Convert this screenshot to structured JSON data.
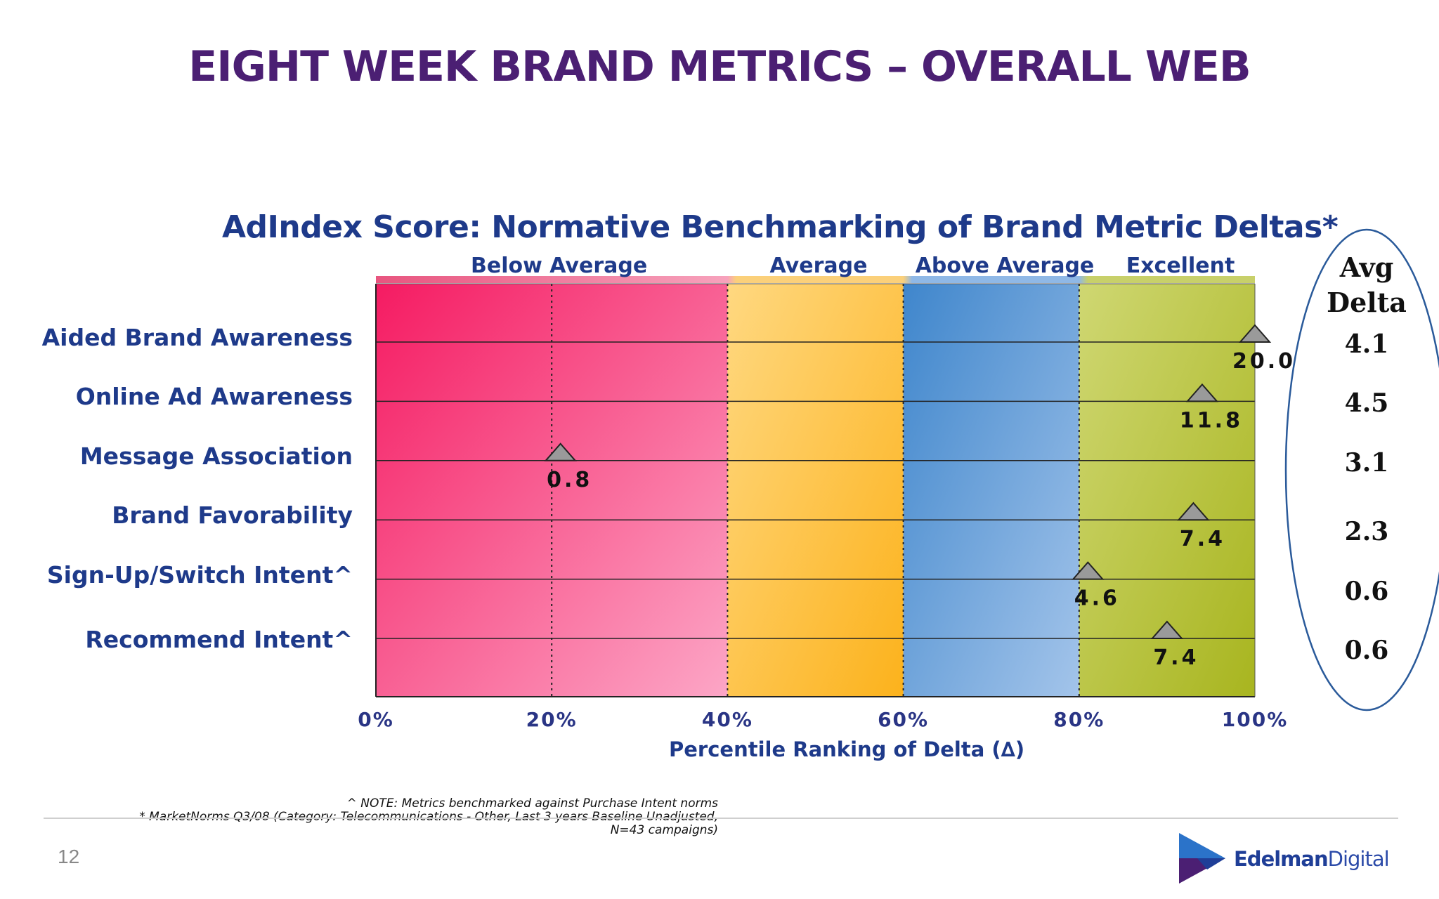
{
  "page_title": "EIGHT WEEK BRAND METRICS – OVERALL WEB",
  "chart_data": {
    "type": "scatter",
    "title": "AdIndex Score: Normative Benchmarking of Brand Metric Deltas*",
    "xlabel": "Percentile Ranking of Delta (∆)",
    "ylabel": "",
    "xlim": [
      0,
      100
    ],
    "x_tick_labels": [
      "0%",
      "20%",
      "40%",
      "60%",
      "80%",
      "100%"
    ],
    "x_ticks": [
      0,
      20,
      40,
      60,
      80,
      100
    ],
    "bands": [
      {
        "label": "Below Average",
        "from": 0,
        "to": 40,
        "color": "#f2447a"
      },
      {
        "label": "Average",
        "from": 40,
        "to": 60,
        "color": "#fdb93d"
      },
      {
        "label": "Above Average",
        "from": 60,
        "to": 80,
        "color": "#5b9bd5"
      },
      {
        "label": "Excellent",
        "from": 80,
        "to": 100,
        "color": "#b8c43a"
      }
    ],
    "categories": [
      "Aided Brand Awareness",
      "Online Ad Awareness",
      "Message Association",
      "Brand Favorability",
      "Sign-Up/Switch Intent^",
      "Recommend Intent^"
    ],
    "percentile": [
      100,
      94,
      21,
      93,
      81,
      90
    ],
    "delta_labels": [
      "20.0",
      "11.8",
      "0.8",
      "7.4",
      "4.6",
      "7.4"
    ],
    "avg_delta_header": "Avg Delta",
    "avg_delta": [
      "4.1",
      "4.5",
      "3.1",
      "2.3",
      "0.6",
      "0.6"
    ],
    "marker": "triangle",
    "marker_color": "#9a9a9a"
  },
  "footnotes": {
    "note": "^ NOTE: Metrics benchmarked against Purchase Intent norms",
    "source_line1": "* MarketNorms Q3/08 (Category: Telecommunications - Other, Last 3 years Baseline Unadjusted,",
    "source_line2": "N=43 campaigns)"
  },
  "page_number": "12",
  "logo": {
    "text_bold": "Edelman",
    "text_thin": "Digital",
    "colors": [
      "#1f3e97",
      "#2b73c9",
      "#4b1f73"
    ]
  }
}
